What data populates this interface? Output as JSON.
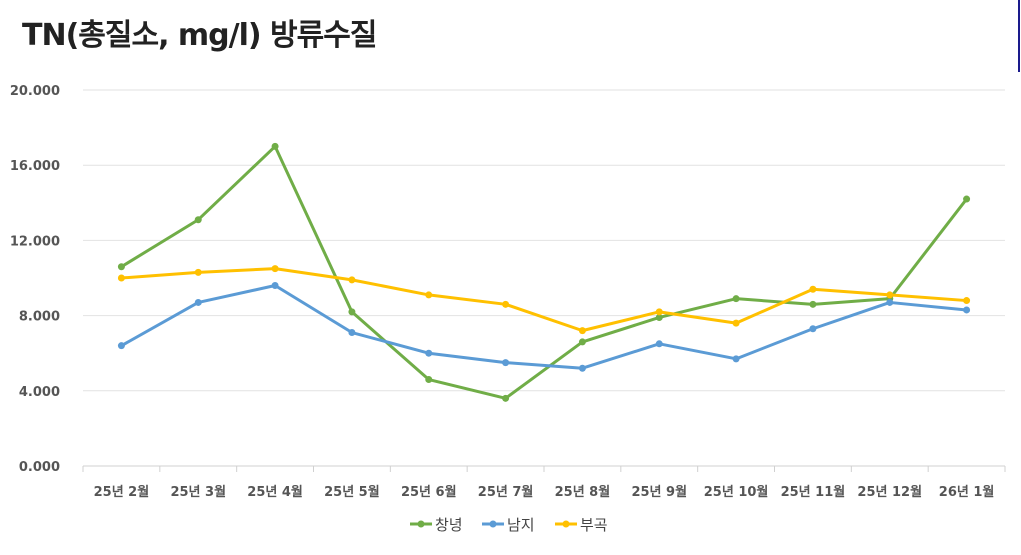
{
  "chart_data": {
    "type": "line",
    "title": "TN(총질소, mg/l) 방류수질",
    "categories": [
      "25년 2월",
      "25년 3월",
      "25년 4월",
      "25년 5월",
      "25년 6월",
      "25년 7월",
      "25년 8월",
      "25년 9월",
      "25년 10월",
      "25년 11월",
      "25년 12월",
      "26년 1월"
    ],
    "ylim": [
      0,
      20
    ],
    "yticks": [
      "0.000",
      "4.000",
      "8.000",
      "12.000",
      "16.000",
      "20.000"
    ],
    "grid": true,
    "legend_position": "bottom",
    "series": [
      {
        "name": "창녕",
        "color": "#70AD47",
        "values": [
          10.6,
          13.1,
          17.0,
          8.2,
          4.6,
          3.6,
          6.6,
          7.9,
          8.9,
          8.6,
          8.9,
          14.2
        ]
      },
      {
        "name": "남지",
        "color": "#5B9BD5",
        "values": [
          6.4,
          8.7,
          9.6,
          7.1,
          6.0,
          5.5,
          5.2,
          6.5,
          5.7,
          7.3,
          8.7,
          8.3
        ]
      },
      {
        "name": "부곡",
        "color": "#FFC000",
        "values": [
          10.0,
          10.3,
          10.5,
          9.9,
          9.1,
          8.6,
          7.2,
          8.2,
          7.6,
          9.4,
          9.1,
          8.8
        ]
      }
    ]
  }
}
